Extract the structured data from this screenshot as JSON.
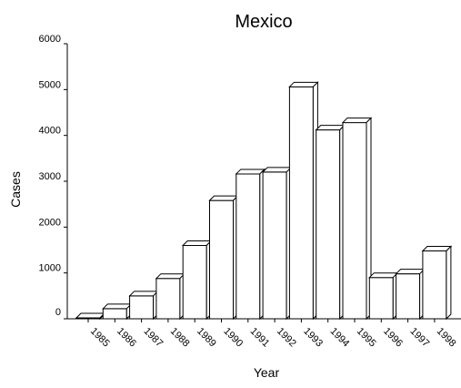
{
  "chart_data": {
    "type": "bar",
    "title": "Mexico",
    "xlabel": "Year",
    "ylabel": "Cases",
    "categories": [
      "1985",
      "1986",
      "1987",
      "1988",
      "1989",
      "1990",
      "1991",
      "1992",
      "1993",
      "1994",
      "1995",
      "1996",
      "1997",
      "1998"
    ],
    "values": [
      20,
      220,
      500,
      880,
      1600,
      2580,
      3160,
      3200,
      5060,
      4120,
      4280,
      900,
      980,
      1480
    ],
    "ylim": [
      0,
      6000
    ],
    "yticks": [
      "0",
      "1000",
      "2000",
      "3000",
      "4000",
      "5000",
      "6000"
    ],
    "grid": false,
    "legend": "none",
    "bar_fill": "#ffffff",
    "bar_stroke": "#000000",
    "style": "3d-bars"
  }
}
